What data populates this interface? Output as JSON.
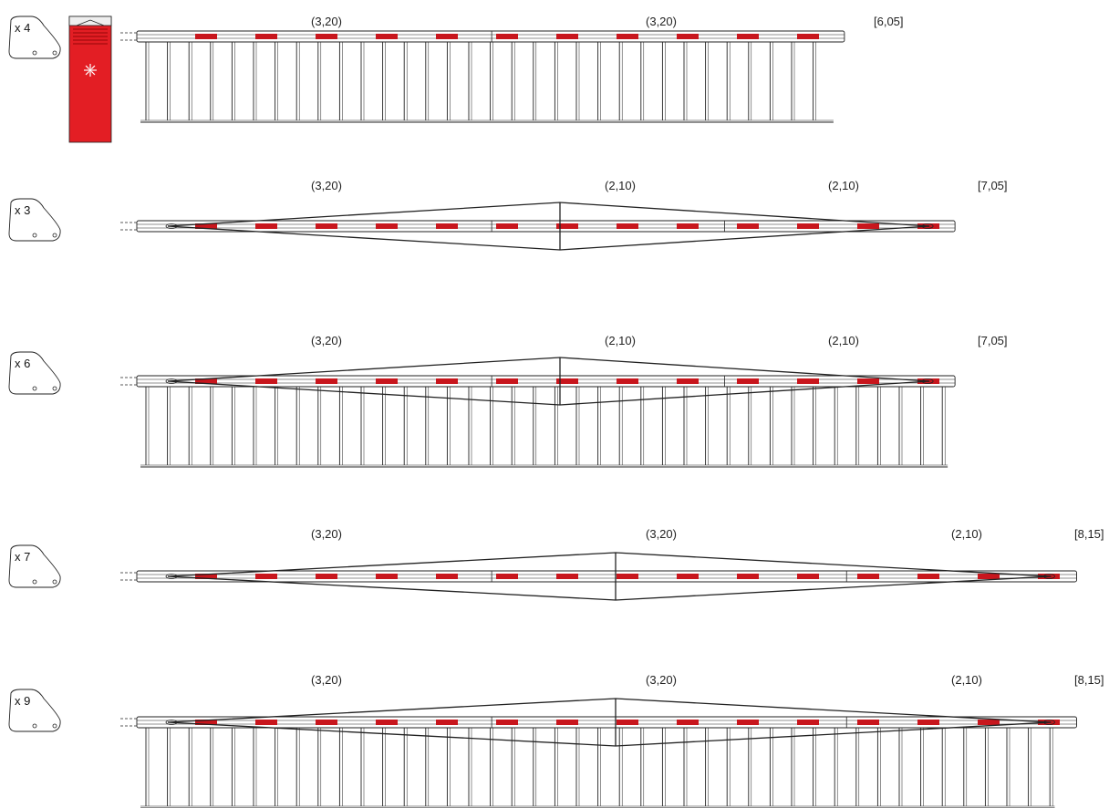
{
  "rows": [
    {
      "quantity": "x 4",
      "segments": [
        {
          "label": "(3,20)",
          "length": 3.2
        },
        {
          "label": "(3,20)",
          "length": 3.2
        }
      ],
      "total": "[6,05]",
      "boom_type": "straight",
      "has_skirt": true,
      "has_cabinet": true
    },
    {
      "quantity": "x 3",
      "segments": [
        {
          "label": "(3,20)",
          "length": 3.2
        },
        {
          "label": "(2,10)",
          "length": 2.1
        },
        {
          "label": "(2,10)",
          "length": 2.1
        }
      ],
      "total": "[7,05]",
      "boom_type": "reinforced",
      "has_skirt": false,
      "has_cabinet": false
    },
    {
      "quantity": "x 6",
      "segments": [
        {
          "label": "(3,20)",
          "length": 3.2
        },
        {
          "label": "(2,10)",
          "length": 2.1
        },
        {
          "label": "(2,10)",
          "length": 2.1
        }
      ],
      "total": "[7,05]",
      "boom_type": "reinforced",
      "has_skirt": true,
      "has_cabinet": false
    },
    {
      "quantity": "x 7",
      "segments": [
        {
          "label": "(3,20)",
          "length": 3.2
        },
        {
          "label": "(3,20)",
          "length": 3.2
        },
        {
          "label": "(2,10)",
          "length": 2.1
        }
      ],
      "total": "[8,15]",
      "boom_type": "reinforced",
      "has_skirt": false,
      "has_cabinet": false
    },
    {
      "quantity": "x 9",
      "segments": [
        {
          "label": "(3,20)",
          "length": 3.2
        },
        {
          "label": "(3,20)",
          "length": 3.2
        },
        {
          "label": "(2,10)",
          "length": 2.1
        }
      ],
      "total": "[8,15]",
      "boom_type": "reinforced",
      "has_skirt": true,
      "has_cabinet": false
    }
  ],
  "colors": {
    "stripe": "#c8161d",
    "cabinet": "#e31e24",
    "line": "#222222"
  },
  "icons": {
    "remote": "remote-control-icon",
    "beacon": "warning-light-icon"
  }
}
